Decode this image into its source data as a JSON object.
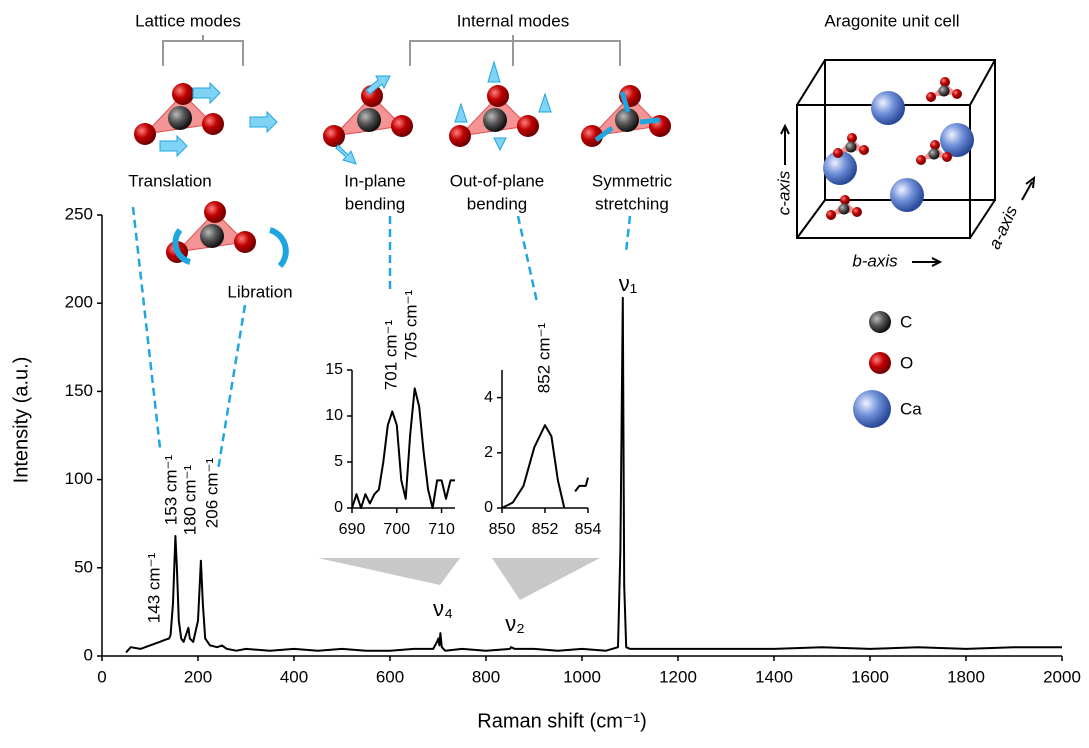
{
  "chart_data": [
    {
      "type": "line",
      "x_label": "Raman shift (cm⁻¹)",
      "y_label": "Intensity (a.u.)",
      "xlim": [
        0,
        2000
      ],
      "xticks": [
        0,
        200,
        400,
        600,
        800,
        1000,
        1200,
        1400,
        1600,
        1800,
        2000
      ],
      "ylim": [
        0,
        250
      ],
      "yticks": [
        0,
        50,
        100,
        150,
        200,
        250
      ],
      "series": [
        {
          "color": "#000000",
          "x": [
            50,
            60,
            80,
            100,
            120,
            130,
            140,
            143,
            148,
            153,
            156,
            160,
            165,
            170,
            175,
            180,
            183,
            190,
            200,
            206,
            210,
            215,
            225,
            240,
            250,
            260,
            280,
            300,
            350,
            400,
            450,
            500,
            550,
            600,
            650,
            690,
            698,
            701,
            703,
            705,
            708,
            715,
            750,
            800,
            850,
            852,
            860,
            900,
            950,
            1000,
            1050,
            1075,
            1080,
            1085,
            1088,
            1092,
            1100,
            1200,
            1300,
            1400,
            1500,
            1600,
            1700,
            1800,
            1900,
            2000
          ],
          "values": [
            2,
            5,
            4,
            6,
            8,
            9,
            10,
            12,
            30,
            68,
            50,
            20,
            10,
            8,
            12,
            16,
            10,
            8,
            20,
            54,
            30,
            10,
            6,
            5,
            6,
            4,
            3,
            4,
            3,
            4,
            3,
            4,
            3,
            3,
            4,
            4,
            8,
            10,
            6,
            13,
            5,
            3,
            4,
            3,
            4,
            5,
            4,
            4,
            3,
            4,
            3,
            5,
            60,
            203,
            40,
            5,
            4,
            4,
            4,
            4,
            5,
            4,
            5,
            4,
            5,
            5
          ]
        }
      ],
      "annotations": [
        "143 cm⁻¹",
        "153 cm⁻¹",
        "180 cm⁻¹",
        "206 cm⁻¹",
        "ν₁",
        "ν₄",
        "ν₂"
      ]
    },
    {
      "type": "line",
      "xlim": [
        690,
        713
      ],
      "xticks": [
        690,
        700,
        710
      ],
      "ylim": [
        0,
        15
      ],
      "yticks": [
        0,
        5,
        10,
        15
      ],
      "series": [
        {
          "color": "#000000",
          "x": [
            690,
            691,
            692,
            693,
            694,
            695,
            696,
            697,
            698,
            699,
            700,
            701,
            702,
            703,
            704,
            705,
            706,
            707,
            708,
            709,
            710,
            711,
            712,
            713
          ],
          "values": [
            0,
            1.5,
            0,
            1.5,
            0.5,
            1.5,
            2,
            5,
            9,
            10.5,
            9,
            3,
            1,
            8,
            13,
            11,
            6,
            2,
            0,
            3,
            3,
            1,
            3,
            3
          ]
        }
      ],
      "annotations": [
        "701 cm⁻¹",
        "705 cm⁻¹"
      ]
    },
    {
      "type": "line",
      "xlim": [
        850,
        854
      ],
      "xticks": [
        850,
        852,
        854
      ],
      "ylim": [
        0,
        5
      ],
      "yticks": [
        0,
        2,
        4
      ],
      "series": [
        {
          "color": "#000000",
          "x": [
            850,
            850.5,
            851,
            851.5,
            852,
            852.3,
            852.6,
            852.9,
            853.2,
            853.4,
            853.6,
            853.9,
            854
          ],
          "values": [
            0,
            0.2,
            0.8,
            2.2,
            3,
            2.6,
            1,
            0,
            null,
            0.6,
            0.8,
            0.8,
            1.1
          ]
        }
      ],
      "annotations": [
        "852 cm⁻¹"
      ]
    }
  ],
  "diagram": {
    "lattice_modes": "Lattice modes",
    "internal_modes": "Internal modes",
    "unit_cell_title": "Aragonite unit cell",
    "translation": "Translation",
    "libration": "Libration",
    "in_plane": [
      "In-plane",
      "bending"
    ],
    "out_of_plane": [
      "Out-of-plane",
      "bending"
    ],
    "symmetric": [
      "Symmetric",
      "stretching"
    ],
    "c_axis": "c-axis",
    "b_axis": "b-axis",
    "a_axis": "a-axis",
    "legend": [
      "C",
      "O",
      "Ca"
    ]
  }
}
